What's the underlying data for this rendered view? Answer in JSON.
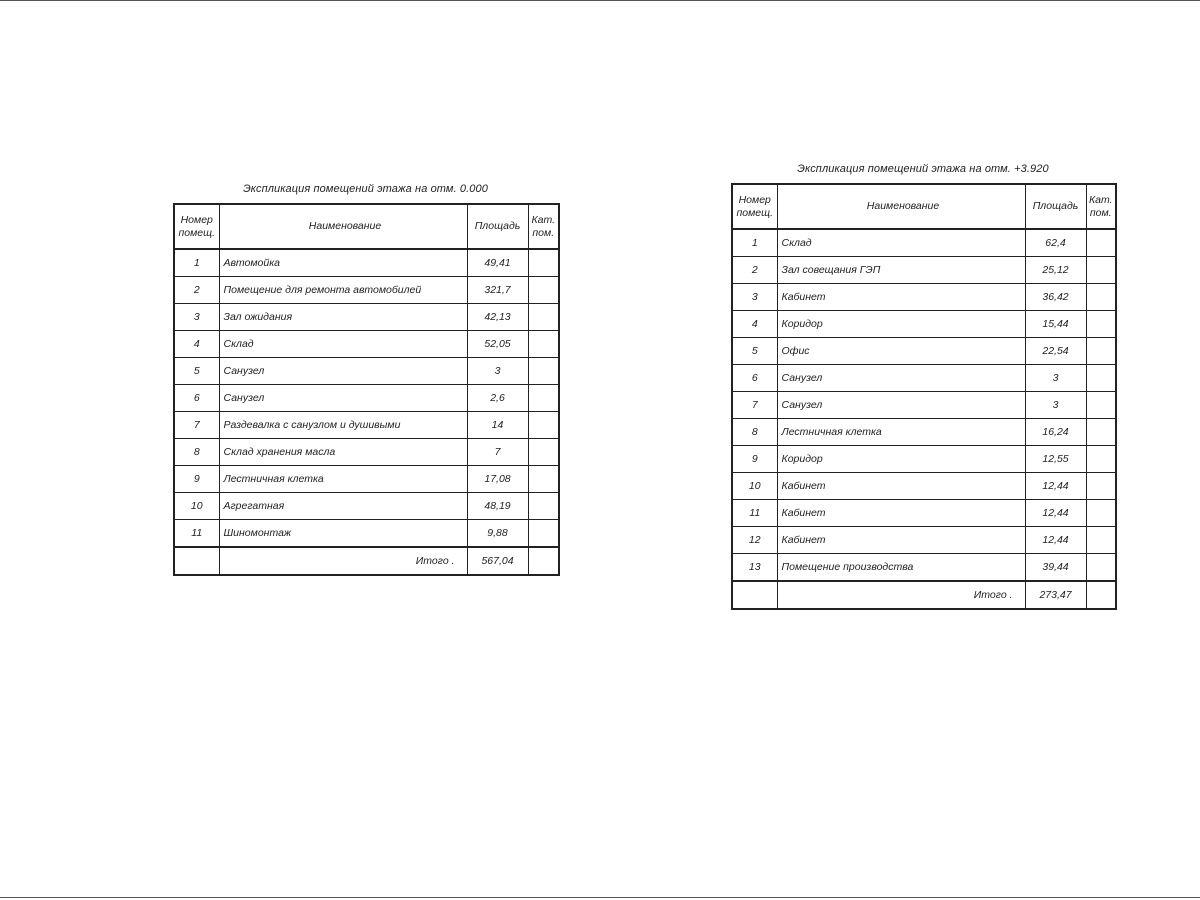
{
  "headers": {
    "number": "Номер помещ.",
    "name": "Наименование",
    "area": "Площадь",
    "category": "Кат. пом."
  },
  "tables": [
    {
      "title": "Экспликация помещений этажа на отм. 0.000",
      "rows": [
        {
          "num": "1",
          "name": "Автомойка",
          "area": "49,41"
        },
        {
          "num": "2",
          "name": "Помещение для ремонта автомобилей",
          "area": "321,7"
        },
        {
          "num": "3",
          "name": "Зал ожидания",
          "area": "42,13"
        },
        {
          "num": "4",
          "name": "Склад",
          "area": "52,05"
        },
        {
          "num": "5",
          "name": "Санузел",
          "area": "3"
        },
        {
          "num": "6",
          "name": "Санузел",
          "area": "2,6"
        },
        {
          "num": "7",
          "name": "Раздевалка с санузлом и душивыми",
          "area": "14"
        },
        {
          "num": "8",
          "name": "Склад хранения масла",
          "area": "7"
        },
        {
          "num": "9",
          "name": "Лестничная клетка",
          "area": "17,08"
        },
        {
          "num": "10",
          "name": "Агрегатная",
          "area": "48,19"
        },
        {
          "num": "11",
          "name": "Шиномонтаж",
          "area": "9,88"
        }
      ],
      "total_label": "Итого .",
      "total_value": "567,04"
    },
    {
      "title": "Экспликация помещений этажа на отм. +3.920",
      "rows": [
        {
          "num": "1",
          "name": "Склад",
          "area": "62,4"
        },
        {
          "num": "2",
          "name": "Зал совещания ГЭП",
          "area": "25,12"
        },
        {
          "num": "3",
          "name": "Кабинет",
          "area": "36,42"
        },
        {
          "num": "4",
          "name": "Коридор",
          "area": "15,44"
        },
        {
          "num": "5",
          "name": "Офис",
          "area": "22,54"
        },
        {
          "num": "6",
          "name": "Санузел",
          "area": "3"
        },
        {
          "num": "7",
          "name": "Санузел",
          "area": "3"
        },
        {
          "num": "8",
          "name": "Лестничная клетка",
          "area": "16,24"
        },
        {
          "num": "9",
          "name": "Коридор",
          "area": "12,55"
        },
        {
          "num": "10",
          "name": "Кабинет",
          "area": "12,44"
        },
        {
          "num": "11",
          "name": "Кабинет",
          "area": "12,44"
        },
        {
          "num": "12",
          "name": "Кабинет",
          "area": "12,44"
        },
        {
          "num": "13",
          "name": "Помещение производства",
          "area": "39,44"
        }
      ],
      "total_label": "Итого .",
      "total_value": "273,47"
    }
  ]
}
